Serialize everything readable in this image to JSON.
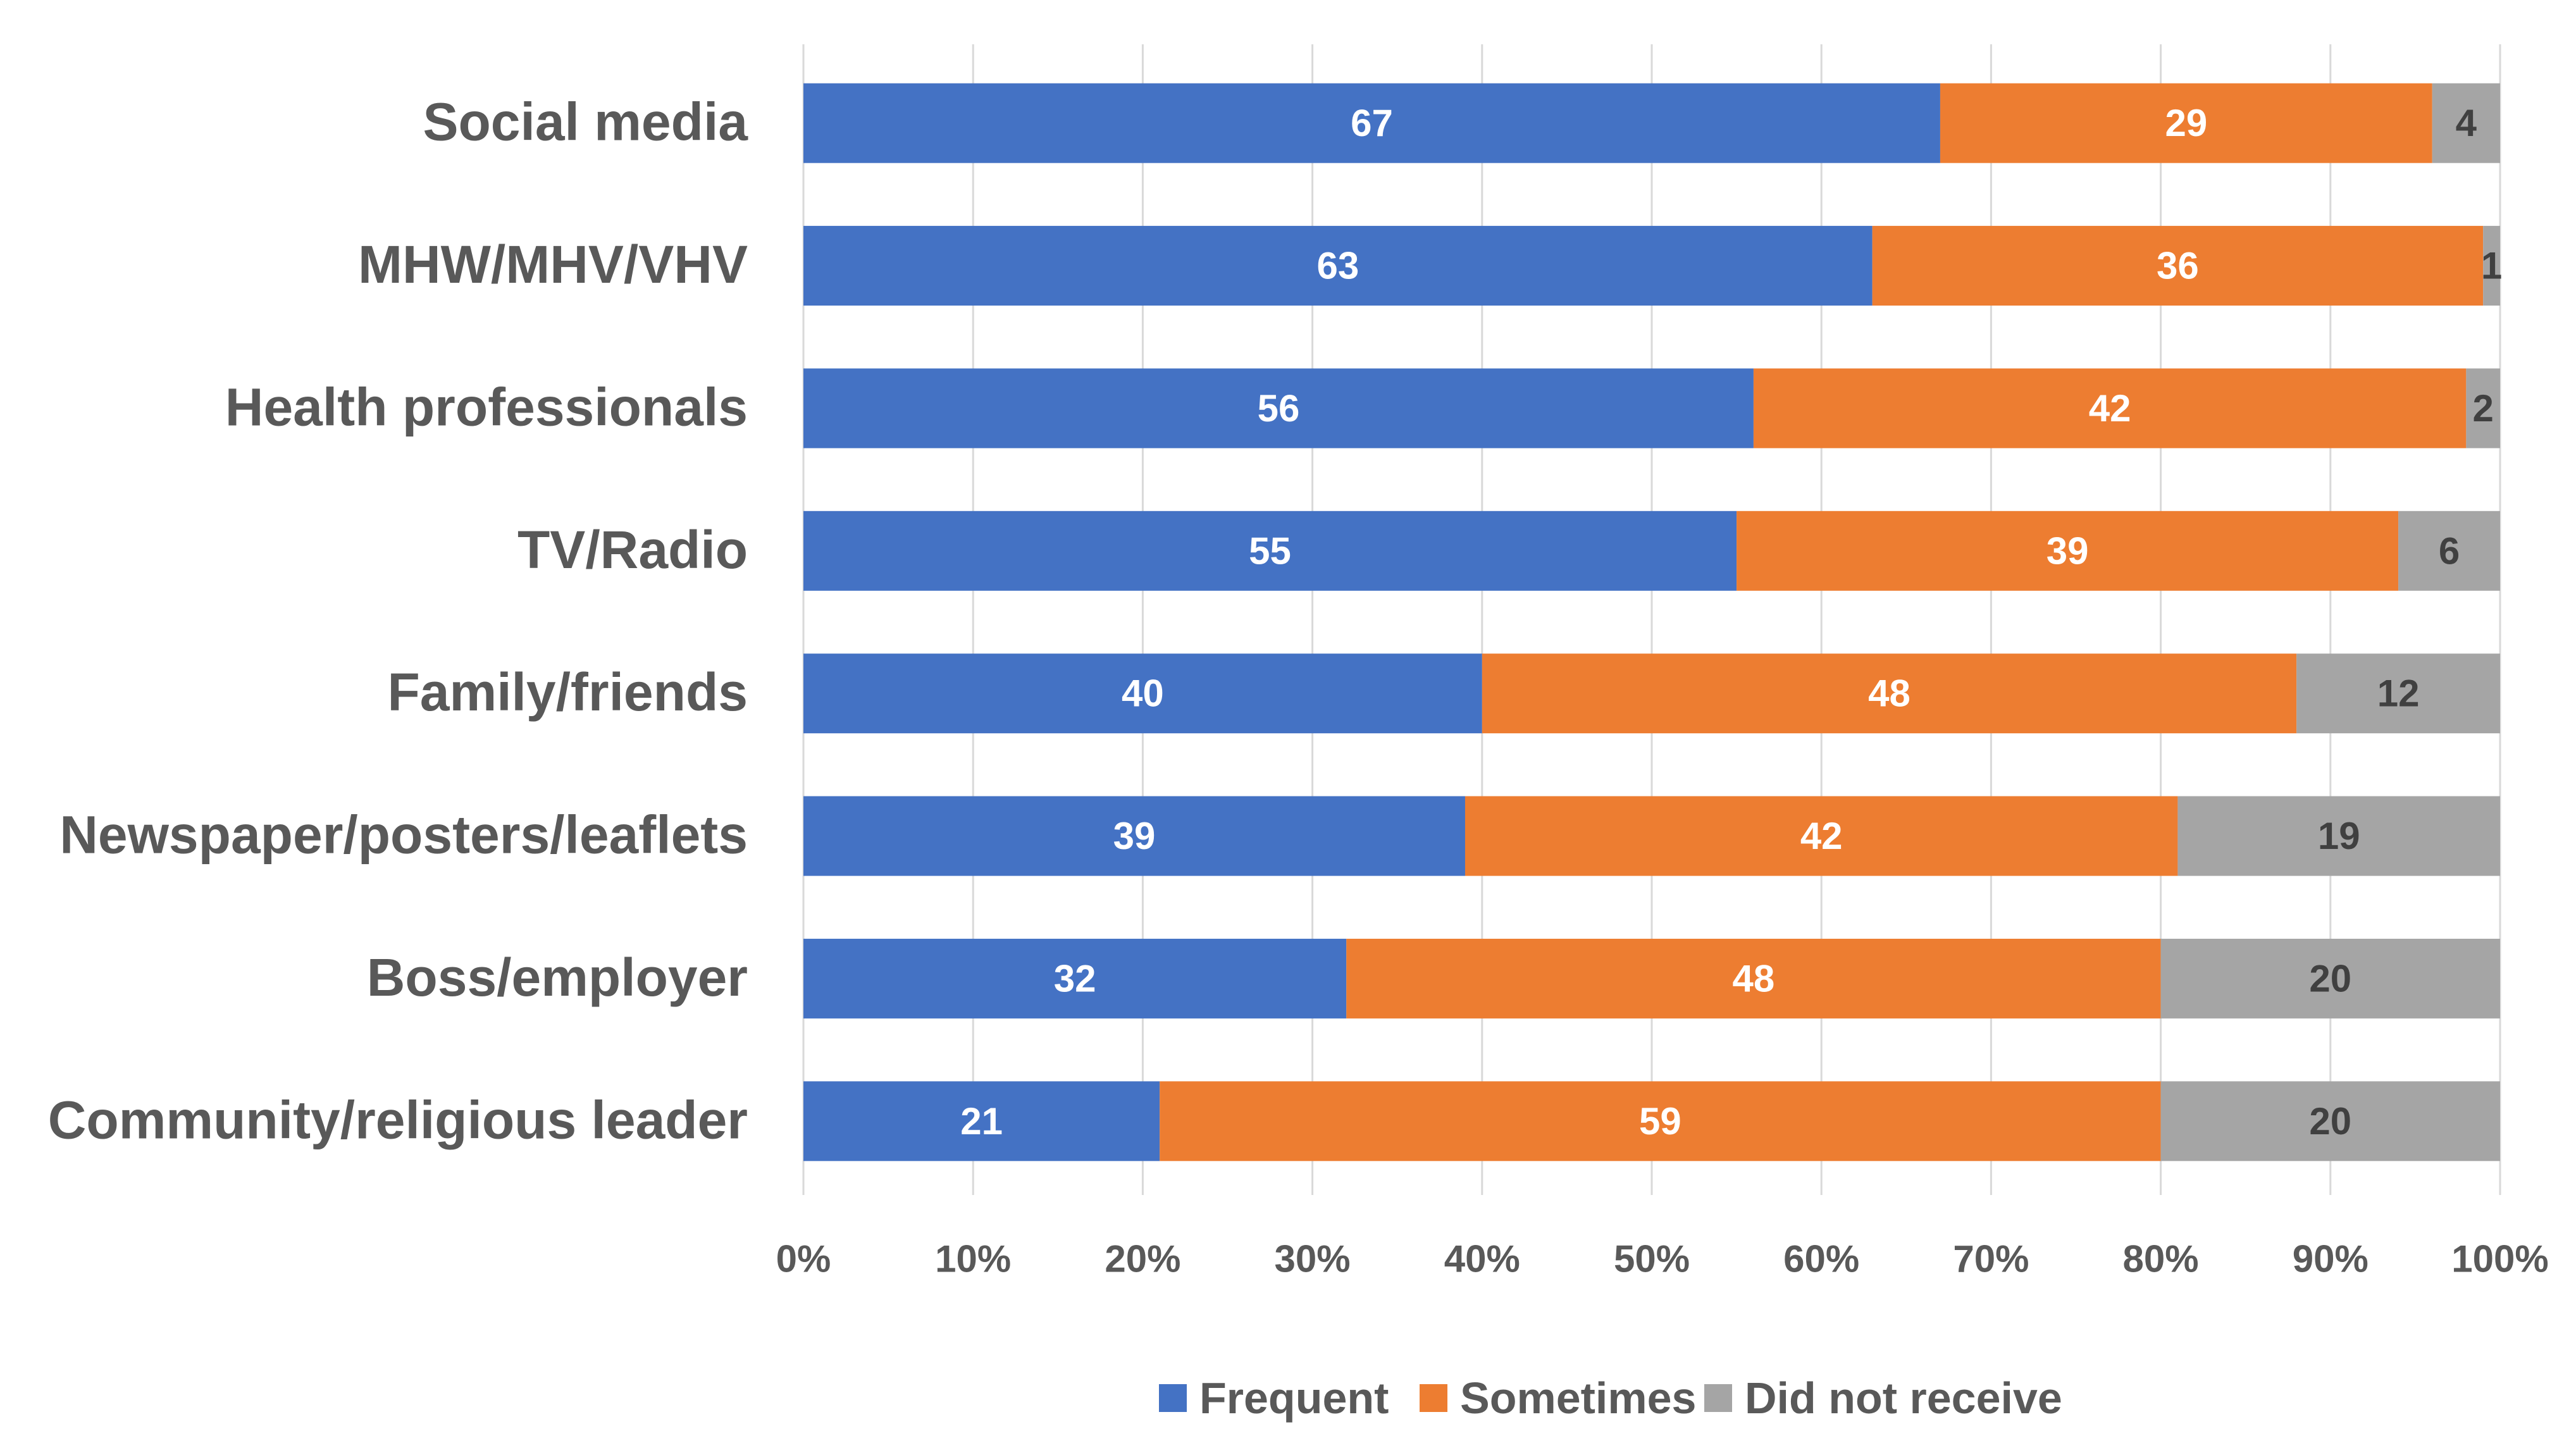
{
  "chart_data": {
    "type": "bar",
    "orientation": "horizontal",
    "stacked": "100%",
    "title": "",
    "xlabel": "",
    "ylabel": "",
    "xlim": [
      0,
      100
    ],
    "grid": true,
    "legend_position": "bottom",
    "categories": [
      "Social media",
      "MHW/MHV/VHV",
      "Health professionals",
      "TV/Radio",
      "Family/friends",
      "Newspaper/posters/leaflets",
      "Boss/employer",
      "Community/religious leader"
    ],
    "series": [
      {
        "name": "Frequent",
        "color": "#4472C4",
        "label_color": "#FFFFFF",
        "values": [
          67,
          63,
          56,
          55,
          40,
          39,
          32,
          21
        ]
      },
      {
        "name": "Sometimes",
        "color": "#ED7D31",
        "label_color": "#FFFFFF",
        "values": [
          29,
          36,
          42,
          39,
          48,
          42,
          48,
          59
        ]
      },
      {
        "name": "Did not receive",
        "color": "#A5A5A5",
        "label_color": "#404040",
        "values": [
          4,
          1,
          2,
          6,
          12,
          19,
          20,
          20
        ]
      }
    ],
    "x_ticks": [
      "0%",
      "10%",
      "20%",
      "30%",
      "40%",
      "50%",
      "60%",
      "70%",
      "80%",
      "90%",
      "100%"
    ]
  }
}
